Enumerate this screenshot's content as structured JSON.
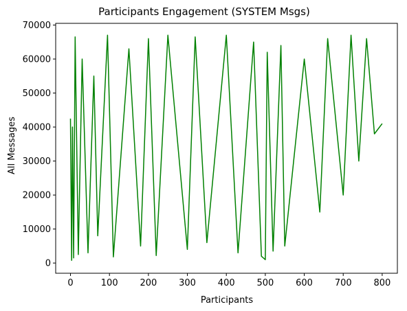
{
  "chart_data": {
    "type": "line",
    "title": "Participants Engagement (SYSTEM Msgs)",
    "xlabel": "Participants",
    "ylabel": "All Messages",
    "xlim": [
      -38,
      839
    ],
    "ylim": [
      -3000,
      70500
    ],
    "xticks": [
      0,
      100,
      200,
      300,
      400,
      500,
      600,
      700,
      800
    ],
    "yticks": [
      0,
      10000,
      20000,
      30000,
      40000,
      50000,
      60000,
      70000
    ],
    "grid": false,
    "legend": "none",
    "line_color": "#008000",
    "series": [
      {
        "x": [
          0,
          3,
          5,
          8,
          12,
          20,
          30,
          45,
          60,
          70,
          95,
          110,
          150,
          180,
          200,
          220,
          250,
          300,
          320,
          350,
          400,
          430,
          470,
          490,
          500,
          505,
          520,
          540,
          550,
          600,
          640,
          660,
          700,
          720,
          740,
          760,
          780,
          800
        ],
        "y": [
          42500,
          800,
          40000,
          1500,
          66500,
          2500,
          60000,
          3000,
          55000,
          8000,
          67000,
          1800,
          63000,
          5000,
          66000,
          2200,
          67000,
          4000,
          66500,
          6000,
          67000,
          3000,
          65000,
          2000,
          1000,
          62000,
          3500,
          64000,
          5000,
          60000,
          15000,
          66000,
          20000,
          67000,
          30000,
          66000,
          38000,
          41000
        ]
      }
    ]
  }
}
